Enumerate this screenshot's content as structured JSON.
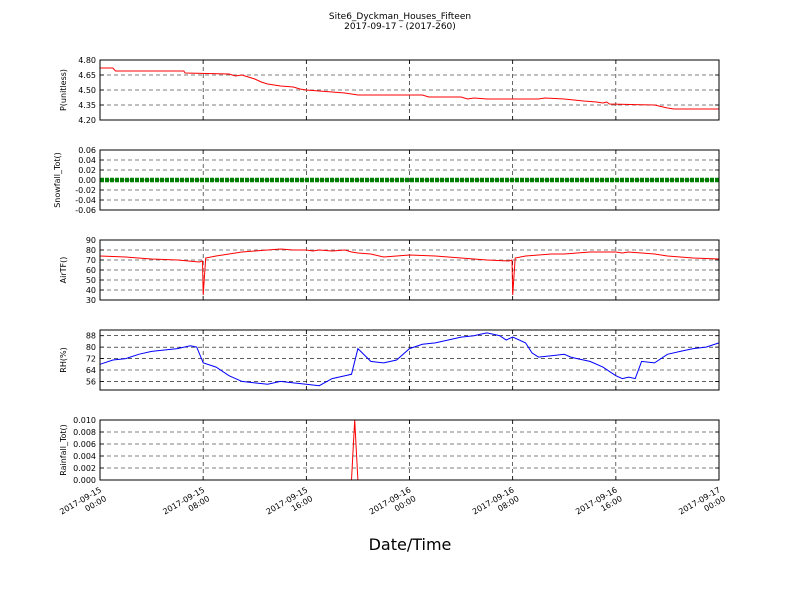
{
  "chart_data": {
    "type": "line",
    "title": "Site6_Dyckman_Houses_Fifteen",
    "subtitle": "2017-09-17 - (2017-260)",
    "xlabel": "Date/Time",
    "x_ticks": [
      [
        "2017-09-15",
        "00:00"
      ],
      [
        "2017-09-15",
        "08:00"
      ],
      [
        "2017-09-15",
        "16:00"
      ],
      [
        "2017-09-16",
        "00:00"
      ],
      [
        "2017-09-16",
        "08:00"
      ],
      [
        "2017-09-16",
        "16:00"
      ],
      [
        "2017-09-17",
        "00:00"
      ]
    ],
    "x_range_hours": [
      0,
      48
    ],
    "grid": true,
    "panels": [
      {
        "ylabel": "P(unitless)",
        "color": "#ff0000",
        "ylim": [
          4.2,
          4.8
        ],
        "yticks": [
          "4.80",
          "4.65",
          "4.50",
          "4.35",
          "4.20"
        ],
        "ytick_values": [
          4.8,
          4.65,
          4.5,
          4.35,
          4.2
        ],
        "x": [
          0,
          1,
          1.2,
          6.5,
          6.6,
          10,
          10.5,
          11,
          11.5,
          12,
          12.5,
          13,
          14,
          15,
          15.5,
          16,
          17,
          19,
          20,
          25,
          25.5,
          28,
          28.5,
          29,
          30,
          34,
          34.5,
          36,
          37.5,
          38.5,
          39,
          39.3,
          39.5,
          43,
          44,
          44.5,
          48
        ],
        "y": [
          4.72,
          4.72,
          4.69,
          4.69,
          4.67,
          4.66,
          4.64,
          4.65,
          4.63,
          4.61,
          4.58,
          4.56,
          4.54,
          4.53,
          4.51,
          4.5,
          4.49,
          4.47,
          4.45,
          4.45,
          4.43,
          4.43,
          4.41,
          4.42,
          4.41,
          4.41,
          4.42,
          4.41,
          4.39,
          4.38,
          4.37,
          4.38,
          4.36,
          4.35,
          4.32,
          4.31,
          4.31
        ]
      },
      {
        "ylabel": "Snowfall_Tot()",
        "color": "#008000",
        "ylim": [
          -0.06,
          0.06
        ],
        "yticks": [
          "0.06",
          "0.04",
          "0.02",
          "0.00",
          "-0.02",
          "-0.04",
          "-0.06"
        ],
        "ytick_values": [
          0.06,
          0.04,
          0.02,
          0.0,
          -0.02,
          -0.04,
          -0.06
        ],
        "x": [
          0,
          48
        ],
        "y": [
          0.0,
          0.0
        ],
        "markers": true
      },
      {
        "ylabel": "AirTF()",
        "color": "#ff0000",
        "ylim": [
          30,
          90
        ],
        "yticks": [
          "90",
          "80",
          "70",
          "60",
          "50",
          "40",
          "30"
        ],
        "ytick_values": [
          90,
          80,
          70,
          60,
          50,
          40,
          30
        ],
        "x": [
          0,
          2,
          4,
          6,
          7.7,
          7.95,
          8.0,
          8.2,
          9,
          10,
          11,
          12,
          13,
          14,
          15,
          16,
          16.5,
          17,
          18,
          19,
          19.5,
          20,
          21,
          22,
          23,
          24,
          26,
          28,
          30,
          31.7,
          31.95,
          32.0,
          32.2,
          33,
          34,
          35,
          36,
          37,
          38,
          39,
          40,
          40.5,
          41,
          42,
          43,
          44,
          45,
          46,
          48
        ],
        "y": [
          74,
          73,
          71,
          70,
          68,
          69,
          35,
          72,
          74,
          76,
          78,
          79,
          80,
          81,
          80,
          80,
          79,
          80,
          79,
          80,
          78,
          77,
          76,
          73,
          74,
          75,
          74,
          72,
          70,
          69,
          70,
          35,
          72,
          74,
          75,
          76,
          76,
          77,
          78,
          78,
          78,
          77,
          78,
          77,
          76,
          74,
          73,
          72,
          71
        ]
      },
      {
        "ylabel": "RH(%)",
        "color": "#0000ff",
        "ylim": [
          50,
          92
        ],
        "yticks": [
          "88",
          "80",
          "72",
          "64",
          "56"
        ],
        "ytick_values": [
          88,
          80,
          72,
          64,
          56
        ],
        "x": [
          0,
          1,
          2,
          3,
          4,
          5,
          6,
          7,
          7.5,
          8,
          9,
          10,
          11,
          12,
          13,
          14,
          15,
          16,
          17,
          18,
          19,
          19.5,
          20,
          21,
          22,
          23,
          24,
          25,
          26,
          27,
          28,
          29,
          29.5,
          30,
          30.5,
          31,
          31.5,
          32,
          33,
          33.5,
          34,
          35,
          36,
          36.5,
          37,
          38,
          39,
          40,
          40.5,
          41,
          41.5,
          42,
          43,
          44,
          45,
          46,
          47,
          48
        ],
        "y": [
          68,
          71,
          72,
          75,
          77,
          78,
          79,
          81,
          80,
          69,
          66,
          60,
          56,
          55,
          54,
          56,
          55,
          54,
          53,
          58,
          60,
          61,
          79,
          70,
          69,
          71,
          79,
          82,
          83,
          85,
          87,
          88,
          89,
          90,
          89,
          88,
          85,
          87,
          83,
          76,
          73,
          74,
          75,
          73,
          72,
          70,
          66,
          60,
          58,
          59,
          58,
          70,
          69,
          75,
          77,
          79,
          80,
          83
        ]
      },
      {
        "ylabel": "Rainfall_Tot()",
        "color": "#ff0000",
        "ylim": [
          0,
          0.01
        ],
        "yticks": [
          "0.010",
          "0.008",
          "0.006",
          "0.004",
          "0.002",
          "0.000"
        ],
        "ytick_values": [
          0.01,
          0.008,
          0.006,
          0.004,
          0.002,
          0.0
        ],
        "x": [
          0,
          19.5,
          19.75,
          20.0,
          48
        ],
        "y": [
          0.0,
          0.0,
          0.01,
          0.0,
          0.0
        ]
      }
    ]
  }
}
